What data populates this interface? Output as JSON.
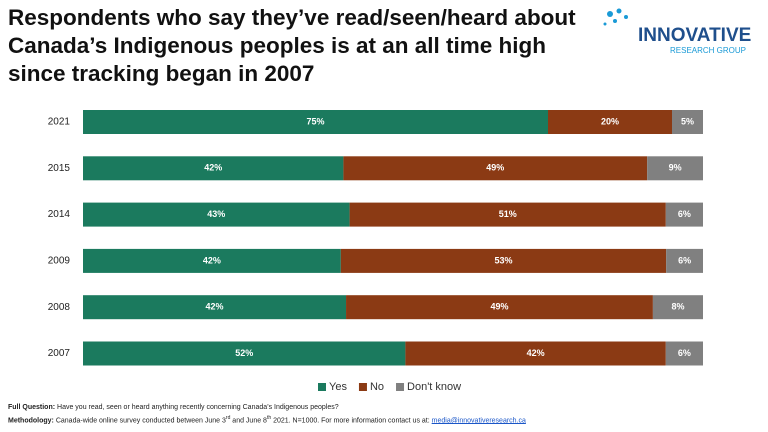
{
  "chart_data": {
    "type": "stacked-bar-horizontal",
    "title": "Respondents who say they’ve read/seen/heard about Canada’s Indigenous peoples is at an all time high since tracking began in 2007",
    "categories": [
      "2021",
      "2015",
      "2014",
      "2009",
      "2008",
      "2007"
    ],
    "series": [
      {
        "name": "Yes",
        "color": "#1b7a5e",
        "values": [
          75,
          42,
          43,
          42,
          42,
          52
        ],
        "value_labels": [
          "75%",
          "42%",
          "43%",
          "42%",
          "42%",
          "52%"
        ]
      },
      {
        "name": "No",
        "color": "#8b3a14",
        "values": [
          20,
          49,
          51,
          53,
          49,
          42
        ],
        "value_labels": [
          "20%",
          "49%",
          "51%",
          "53%",
          "49%",
          "42%"
        ]
      },
      {
        "name": "Don't know",
        "color": "#808080",
        "values": [
          5,
          9,
          6,
          6,
          8,
          6
        ],
        "value_labels": [
          "5%",
          "9%",
          "6%",
          "6%",
          "8%",
          "6%"
        ]
      }
    ],
    "legend": "bottom"
  },
  "logo": {
    "name": "INNOVATIVE",
    "sub": "RESEARCH GROUP"
  },
  "footer": {
    "question_label": "Full Question:",
    "question": "Have you read, seen or heard anything recently concerning Canada’s Indigenous peoples?",
    "method_label": "Methodology:",
    "method_parts": [
      "Canada-wide online survey conducted between  June 3",
      "rd",
      " and June 8",
      "th",
      " 2021. N=1000. For more information contact us at: "
    ],
    "email": "media@innovativeresearch.ca"
  }
}
